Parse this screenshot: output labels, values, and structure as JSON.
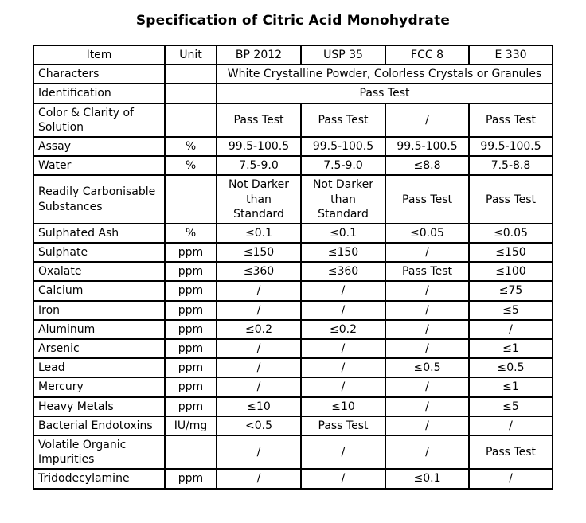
{
  "title": "Specification of Citric Acid Monohydrate",
  "table": {
    "headers": [
      "Item",
      "Unit",
      "BP 2012",
      "USP 35",
      "FCC 8",
      "E 330"
    ],
    "rows": [
      {
        "item": "Characters",
        "unit": "",
        "span": "White Crystalline Powder, Colorless Crystals or Granules"
      },
      {
        "item": "Identification",
        "unit": "",
        "span": "Pass Test"
      },
      {
        "item": "Color & Clarity of Solution",
        "unit": "",
        "values": [
          "Pass Test",
          "Pass Test",
          "/",
          "Pass Test"
        ]
      },
      {
        "item": "Assay",
        "unit": "%",
        "values": [
          "99.5-100.5",
          "99.5-100.5",
          "99.5-100.5",
          "99.5-100.5"
        ]
      },
      {
        "item": "Water",
        "unit": "%",
        "values": [
          "7.5-9.0",
          "7.5-9.0",
          "≤8.8",
          "7.5-8.8"
        ]
      },
      {
        "item": "Readily Carbonisable Substances",
        "unit": "",
        "values": [
          "Not Darker than Standard",
          "Not Darker than Standard",
          "Pass Test",
          "Pass Test"
        ]
      },
      {
        "item": "Sulphated Ash",
        "unit": "%",
        "values": [
          "≤0.1",
          "≤0.1",
          "≤0.05",
          "≤0.05"
        ]
      },
      {
        "item": "Sulphate",
        "unit": "ppm",
        "values": [
          "≤150",
          "≤150",
          "/",
          "≤150"
        ]
      },
      {
        "item": "Oxalate",
        "unit": "ppm",
        "values": [
          "≤360",
          "≤360",
          "Pass Test",
          "≤100"
        ]
      },
      {
        "item": "Calcium",
        "unit": "ppm",
        "values": [
          "/",
          "/",
          "/",
          "≤75"
        ]
      },
      {
        "item": "Iron",
        "unit": "ppm",
        "values": [
          "/",
          "/",
          "/",
          "≤5"
        ]
      },
      {
        "item": "Aluminum",
        "unit": "ppm",
        "values": [
          "≤0.2",
          "≤0.2",
          "/",
          "/"
        ]
      },
      {
        "item": "Arsenic",
        "unit": "ppm",
        "values": [
          "/",
          "/",
          "/",
          "≤1"
        ]
      },
      {
        "item": "Lead",
        "unit": "ppm",
        "values": [
          "/",
          "/",
          "≤0.5",
          "≤0.5"
        ]
      },
      {
        "item": "Mercury",
        "unit": "ppm",
        "values": [
          "/",
          "/",
          "/",
          "≤1"
        ]
      },
      {
        "item": "Heavy Metals",
        "unit": "ppm",
        "values": [
          "≤10",
          "≤10",
          "/",
          "≤5"
        ]
      },
      {
        "item": "Bacterial Endotoxins",
        "unit": "IU/mg",
        "values": [
          "<0.5",
          "Pass Test",
          "/",
          "/"
        ]
      },
      {
        "item": "Volatile Organic Impurities",
        "unit": "",
        "values": [
          "/",
          "/",
          "/",
          "Pass Test"
        ]
      },
      {
        "item": "Tridodecylamine",
        "unit": "ppm",
        "values": [
          "/",
          "/",
          "≤0.1",
          "/"
        ]
      }
    ]
  }
}
